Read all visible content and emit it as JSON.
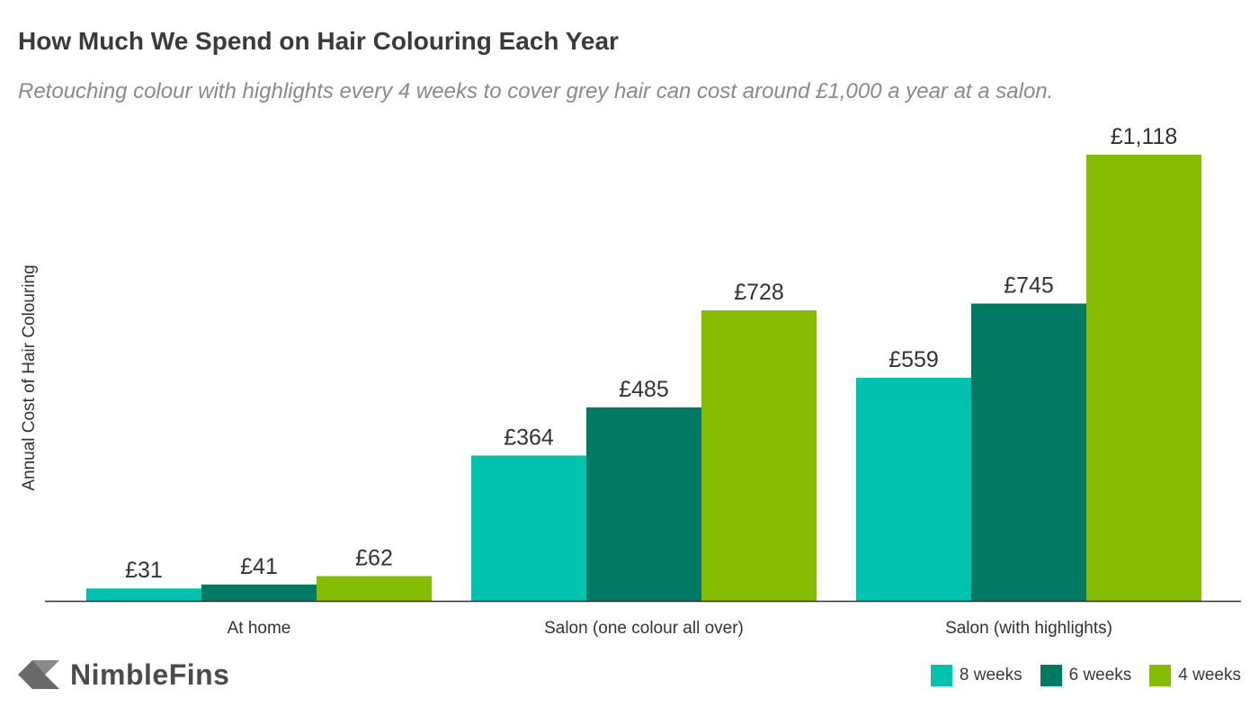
{
  "chart_data": {
    "type": "bar",
    "title": "How Much We Spend on Hair Colouring Each Year",
    "subtitle": "Retouching colour with highlights every 4 weeks to cover grey hair can cost around £1,000 a year at a salon.",
    "xlabel": "",
    "ylabel": "Annual Cost of Hair Colouring",
    "categories": [
      "At home",
      "Salon (one colour all over)",
      "Salon (with highlights)"
    ],
    "series": [
      {
        "name": "8 weeks",
        "color": "#00c2ad",
        "values": [
          31,
          364,
          559
        ],
        "labels": [
          "£31",
          "£364",
          "£559"
        ]
      },
      {
        "name": "6 weeks",
        "color": "#007a62",
        "values": [
          41,
          485,
          745
        ],
        "labels": [
          "£41",
          "£485",
          "£745"
        ]
      },
      {
        "name": "4 weeks",
        "color": "#86bc00",
        "values": [
          62,
          728,
          1118
        ],
        "labels": [
          "£62",
          "£728",
          "£1,118"
        ]
      }
    ],
    "ylim": [
      0,
      1200
    ],
    "grid": false,
    "legend_position": "bottom-right"
  },
  "brand": {
    "name": "NimbleFins",
    "icon": "arrow-chevron-icon"
  }
}
